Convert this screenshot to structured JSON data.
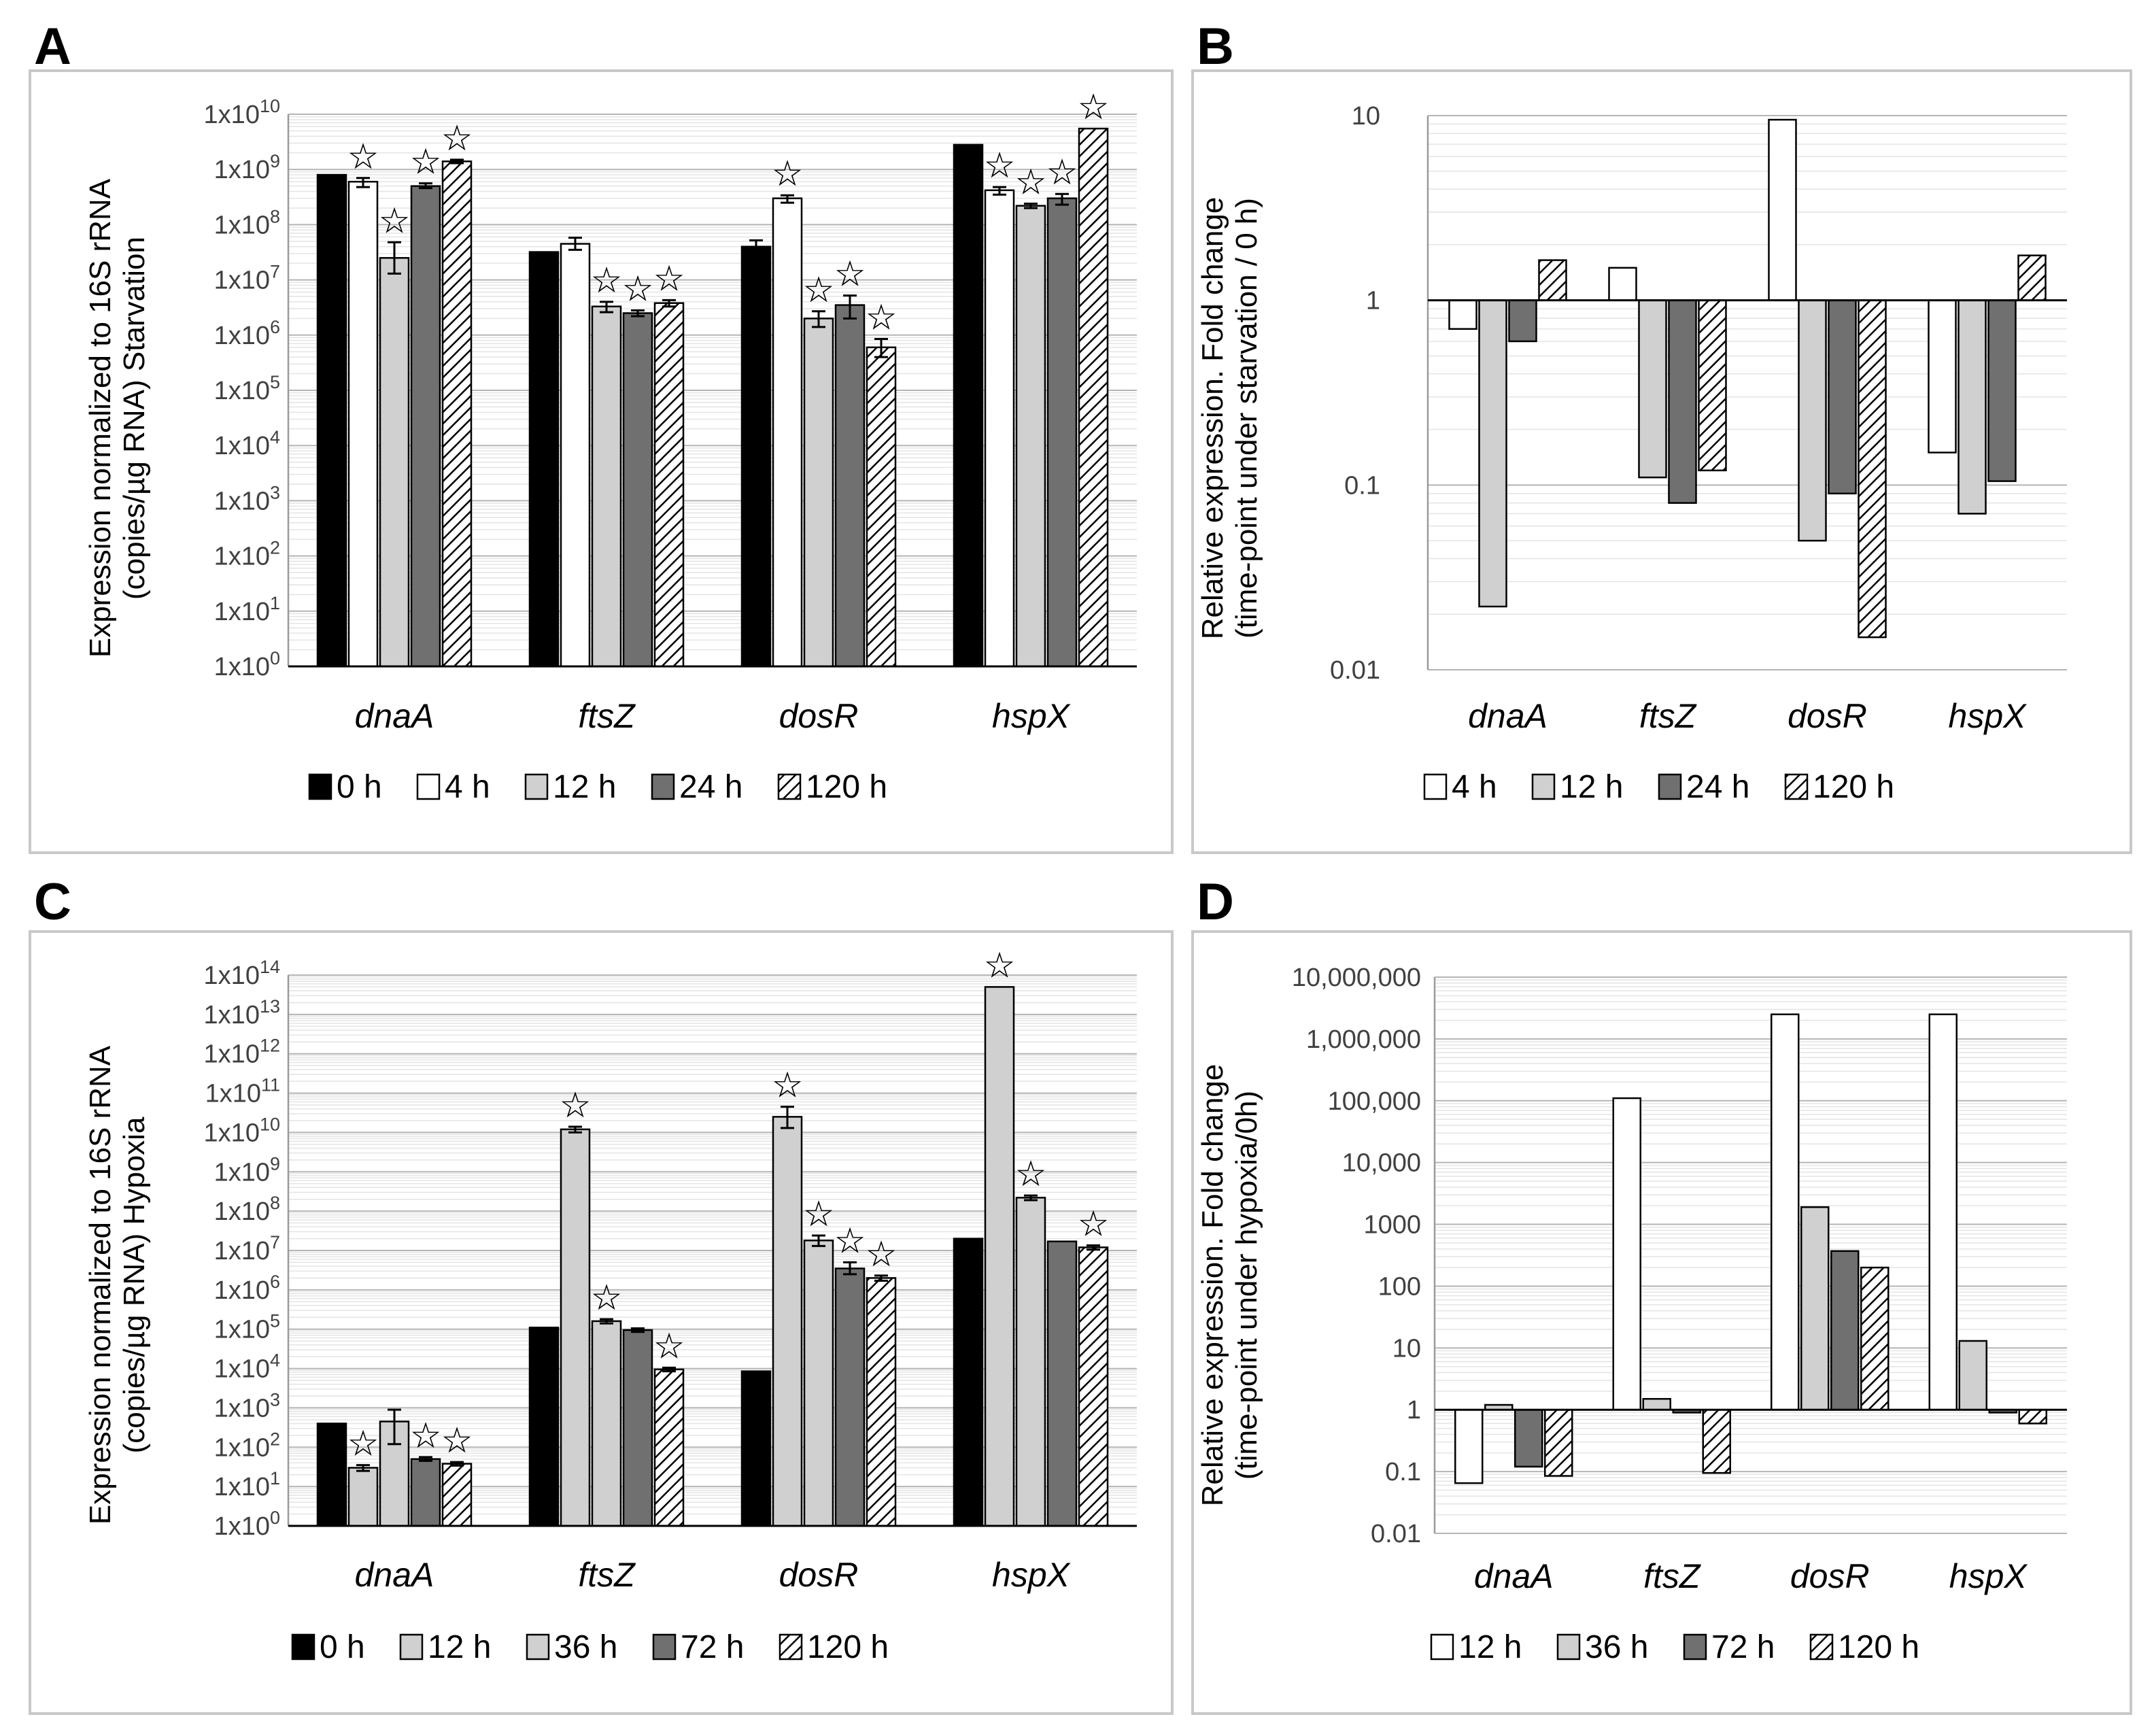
{
  "panels": [
    {
      "letter": "A"
    },
    {
      "letter": "B"
    },
    {
      "letter": "C"
    },
    {
      "letter": "D"
    }
  ],
  "series_styles": {
    "0 h": {
      "fill": "#000000",
      "pattern": false
    },
    "4 h": {
      "fill": "#ffffff",
      "pattern": false
    },
    "12 h": {
      "fill": "#d0d0d0",
      "pattern": false
    },
    "24 h": {
      "fill": "#707070",
      "pattern": false
    },
    "36 h": {
      "fill": "#d0d0d0",
      "pattern": false
    },
    "72 h": {
      "fill": "#707070",
      "pattern": false
    },
    "120 h": {
      "fill": "#ffffff",
      "pattern": true
    },
    "12 h (hypoxia)": {
      "fill": "#ffffff",
      "pattern": false
    }
  },
  "chart_data": [
    {
      "id": "A",
      "type": "bar",
      "scale": "log",
      "title": "",
      "ylabel": "Expression normalized to 16S rRNA (copies/µg RNA) Starvation",
      "ylabel_lines": [
        "Expression normalized to 16S rRNA",
        "(copies/µg RNA) Starvation"
      ],
      "categories": [
        "dnaA",
        "ftsZ",
        "dosR",
        "hspX"
      ],
      "ylim_exp": [
        0,
        10
      ],
      "tick_labels": [
        "1x10",
        "1x10",
        "1x10",
        "1x10",
        "1x10",
        "1x10",
        "1x10",
        "1x10",
        "1x10",
        "1x10",
        "1x10"
      ],
      "tick_exponents": [
        "0",
        "1",
        "2",
        "3",
        "4",
        "5",
        "6",
        "7",
        "8",
        "9",
        "10"
      ],
      "legend": [
        "0 h",
        "4 h",
        "12 h",
        "24 h",
        "120 h"
      ],
      "series": [
        {
          "name": "0 h",
          "style": "0 h",
          "values": [
            800000000,
            32000000,
            40000000,
            2800000000
          ],
          "err_low": [
            null,
            null,
            30000000,
            null
          ],
          "err_high": [
            null,
            null,
            52000000,
            null
          ],
          "stars": [
            false,
            false,
            false,
            false
          ]
        },
        {
          "name": "4 h",
          "style": "4 h",
          "values": [
            600000000,
            45000000,
            300000000,
            420000000
          ],
          "err_low": [
            480000000,
            35000000,
            250000000,
            350000000
          ],
          "err_high": [
            700000000,
            58000000,
            340000000,
            480000000
          ],
          "stars": [
            true,
            false,
            true,
            true
          ]
        },
        {
          "name": "12 h",
          "style": "12 h",
          "values": [
            25000000,
            3300000,
            2000000,
            220000000
          ],
          "err_low": [
            13000000,
            2600000,
            1400000,
            200000000
          ],
          "err_high": [
            48000000,
            4000000,
            2700000,
            240000000
          ],
          "stars": [
            true,
            true,
            true,
            true
          ]
        },
        {
          "name": "24 h",
          "style": "24 h",
          "values": [
            500000000,
            2500000,
            3500000,
            300000000
          ],
          "err_low": [
            460000000,
            2200000,
            2000000,
            230000000
          ],
          "err_high": [
            560000000,
            2800000,
            5200000,
            360000000
          ],
          "stars": [
            true,
            true,
            true,
            true
          ]
        },
        {
          "name": "120 h",
          "style": "120 h",
          "values": [
            1400000000,
            3800000,
            600000,
            5500000000
          ],
          "err_low": [
            1300000000,
            3300000,
            400000,
            null
          ],
          "err_high": [
            1500000000,
            4300000,
            850000,
            null
          ],
          "stars": [
            true,
            true,
            true,
            true
          ]
        }
      ]
    },
    {
      "id": "B",
      "type": "bar",
      "scale": "log",
      "title": "",
      "ylabel": "Relative expression. Fold change (time-point under starvation / 0 h)",
      "ylabel_lines": [
        "Relative expression. Fold change",
        "(time-point under starvation / 0 h)"
      ],
      "categories": [
        "dnaA",
        "ftsZ",
        "dosR",
        "hspX"
      ],
      "ylim_exp": [
        -2,
        1
      ],
      "baseline": 1,
      "tick_labels": [
        "0.01",
        "0.1",
        "1",
        "10"
      ],
      "legend": [
        "4 h",
        "12 h",
        "24 h",
        "120 h"
      ],
      "series": [
        {
          "name": "4 h",
          "style": "4 h",
          "values": [
            0.7,
            1.5,
            9.5,
            0.15
          ]
        },
        {
          "name": "12 h",
          "style": "12 h",
          "values": [
            0.022,
            0.11,
            0.05,
            0.07
          ]
        },
        {
          "name": "24 h",
          "style": "24 h",
          "values": [
            0.6,
            0.08,
            0.09,
            0.105
          ]
        },
        {
          "name": "120 h",
          "style": "120 h",
          "values": [
            1.65,
            0.12,
            0.015,
            1.75
          ]
        }
      ]
    },
    {
      "id": "C",
      "type": "bar",
      "scale": "log",
      "title": "",
      "ylabel": "Expression normalized to 16S rRNA (copies/µg RNA) Hypoxia",
      "ylabel_lines": [
        "Expression normalized to 16S rRNA",
        "(copies/µg RNA) Hypoxia"
      ],
      "categories": [
        "dnaA",
        "ftsZ",
        "dosR",
        "hspX"
      ],
      "ylim_exp": [
        0,
        14
      ],
      "tick_labels": [
        "1x10",
        "1x10",
        "1x10",
        "1x10",
        "1x10",
        "1x10",
        "1x10",
        "1x10",
        "1x10",
        "1x10",
        "1x10",
        "1x10",
        "1x10",
        "1x10",
        "1x10"
      ],
      "tick_exponents": [
        "0",
        "1",
        "2",
        "3",
        "4",
        "5",
        "6",
        "7",
        "8",
        "9",
        "10",
        "11",
        "12",
        "13",
        "14"
      ],
      "legend": [
        "0 h",
        "12 h",
        "36 h",
        "72 h",
        "120 h"
      ],
      "series": [
        {
          "name": "0 h",
          "style": "0 h",
          "values": [
            400,
            110000,
            8500,
            20000000
          ],
          "err_low": [
            null,
            null,
            null,
            null
          ],
          "err_high": [
            null,
            null,
            null,
            null
          ],
          "stars": [
            false,
            false,
            false,
            false
          ]
        },
        {
          "name": "12 h",
          "style": "12 h",
          "values": [
            30,
            12000000000,
            25000000000,
            50000000000000
          ],
          "err_low": [
            25,
            10000000000,
            13000000000,
            null
          ],
          "err_high": [
            35,
            14000000000,
            45000000000,
            null
          ],
          "stars": [
            true,
            true,
            true,
            true
          ]
        },
        {
          "name": "36 h",
          "style": "36 h",
          "values": [
            450,
            160000,
            18000000,
            220000000
          ],
          "err_low": [
            120,
            140000,
            13000000,
            190000000
          ],
          "err_high": [
            900,
            180000,
            24000000,
            250000000
          ],
          "stars": [
            false,
            true,
            true,
            true
          ]
        },
        {
          "name": "72 h",
          "style": "72 h",
          "values": [
            50,
            95000,
            3500000,
            17000000
          ],
          "err_low": [
            45,
            85000,
            2500000,
            null
          ],
          "err_high": [
            56,
            105000,
            5000000,
            null
          ],
          "stars": [
            true,
            false,
            true,
            false
          ]
        },
        {
          "name": "120 h",
          "style": "120 h",
          "values": [
            38,
            9500,
            2000000,
            12000000
          ],
          "err_low": [
            34,
            8500,
            1700000,
            10500000
          ],
          "err_high": [
            42,
            10500,
            2300000,
            13500000
          ],
          "stars": [
            true,
            true,
            true,
            true
          ]
        }
      ]
    },
    {
      "id": "D",
      "type": "bar",
      "scale": "log",
      "title": "",
      "ylabel": "Relative expression. Fold change (time-point under hypoxia/0h)",
      "ylabel_lines": [
        "Relative expression. Fold change",
        "(time-point under hypoxia/0h)"
      ],
      "categories": [
        "dnaA",
        "ftsZ",
        "dosR",
        "hspX"
      ],
      "ylim_exp": [
        -2,
        7
      ],
      "baseline": 1,
      "tick_labels": [
        "0.01",
        "0.1",
        "1",
        "10",
        "100",
        "1000",
        "10,000",
        "100,000",
        "1,000,000",
        "10,000,000"
      ],
      "legend": [
        "12 h",
        "36 h",
        "72 h",
        "120 h"
      ],
      "series": [
        {
          "name": "12 h",
          "style": "4 h",
          "values": [
            0.065,
            110000,
            2500000,
            2500000
          ]
        },
        {
          "name": "36 h",
          "style": "12 h",
          "values": [
            1.2,
            1.5,
            1900,
            13
          ]
        },
        {
          "name": "72 h",
          "style": "24 h",
          "values": [
            0.12,
            0.9,
            370,
            0.9
          ]
        },
        {
          "name": "120 h",
          "style": "120 h",
          "values": [
            0.085,
            0.095,
            200,
            0.6
          ]
        }
      ]
    }
  ]
}
